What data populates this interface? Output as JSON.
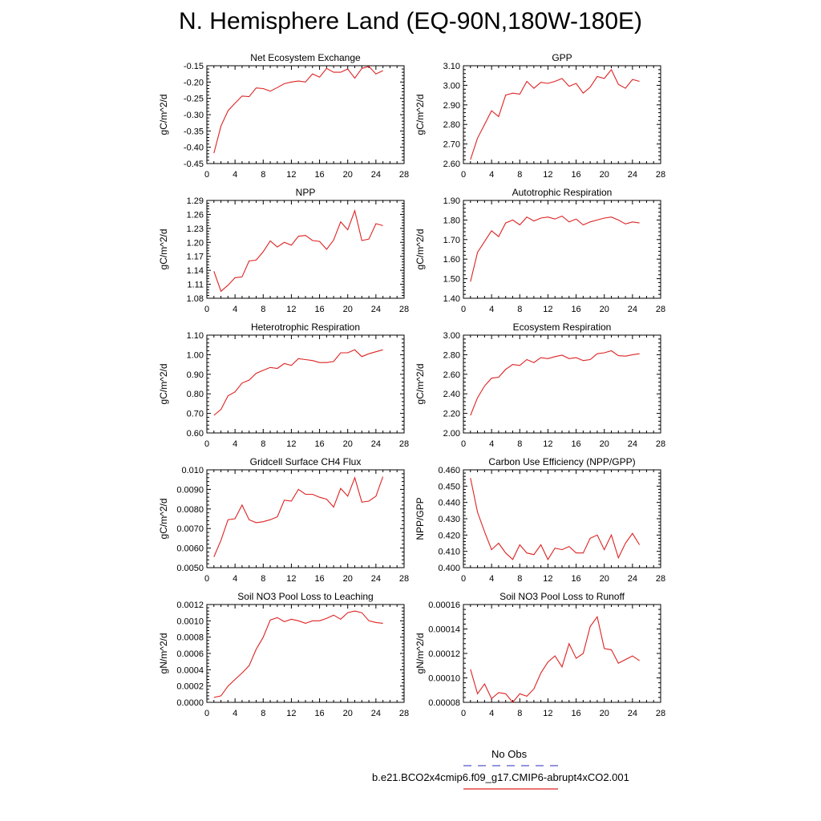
{
  "title": "N. Hemisphere Land (EQ-90N,180W-180E)",
  "legend": {
    "obs_label": "No Obs",
    "obs_color": "#5555cc",
    "case_label": "b.e21.BCO2x4cmip6.f09_g17.CMIP6-abrupt4xCO2.001",
    "case_color": "#dd2222"
  },
  "chart_data": [
    {
      "type": "line",
      "title": "Net Ecosystem Exchange",
      "ylabel": "gC/m^2/d",
      "xlim": [
        0,
        28
      ],
      "ylim": [
        -0.45,
        -0.15
      ],
      "yticks": [
        "-0.15",
        "-0.20",
        "-0.25",
        "-0.30",
        "-0.35",
        "-0.40",
        "-0.45"
      ],
      "ytick_values": [
        -0.15,
        -0.2,
        -0.25,
        -0.3,
        -0.35,
        -0.4,
        -0.45
      ],
      "xticks": [
        "0",
        "4",
        "8",
        "12",
        "16",
        "20",
        "24",
        "28"
      ],
      "x": [
        1,
        2,
        3,
        4,
        5,
        6,
        7,
        8,
        9,
        10,
        11,
        12,
        13,
        14,
        15,
        16,
        17,
        18,
        19,
        20,
        21,
        22,
        23,
        24,
        25
      ],
      "values": [
        -0.418,
        -0.335,
        -0.288,
        -0.265,
        -0.243,
        -0.245,
        -0.218,
        -0.22,
        -0.228,
        -0.217,
        -0.205,
        -0.2,
        -0.197,
        -0.2,
        -0.175,
        -0.185,
        -0.158,
        -0.17,
        -0.17,
        -0.16,
        -0.188,
        -0.158,
        -0.152,
        -0.175,
        -0.165
      ]
    },
    {
      "type": "line",
      "title": "GPP",
      "ylabel": "gC/m^2/d",
      "xlim": [
        0,
        28
      ],
      "ylim": [
        2.6,
        3.1
      ],
      "yticks": [
        "3.10",
        "3.00",
        "2.90",
        "2.80",
        "2.70",
        "2.60"
      ],
      "ytick_values": [
        3.1,
        3.0,
        2.9,
        2.8,
        2.7,
        2.6
      ],
      "xticks": [
        "0",
        "4",
        "8",
        "12",
        "16",
        "20",
        "24",
        "28"
      ],
      "x": [
        1,
        2,
        3,
        4,
        5,
        6,
        7,
        8,
        9,
        10,
        11,
        12,
        13,
        14,
        15,
        16,
        17,
        18,
        19,
        20,
        21,
        22,
        23,
        24,
        25
      ],
      "values": [
        2.62,
        2.73,
        2.8,
        2.87,
        2.84,
        2.95,
        2.96,
        2.955,
        3.02,
        2.985,
        3.015,
        3.01,
        3.02,
        3.035,
        2.995,
        3.01,
        2.96,
        2.99,
        3.045,
        3.035,
        3.08,
        3.005,
        2.985,
        3.03,
        3.02
      ]
    },
    {
      "type": "line",
      "title": "NPP",
      "ylabel": "gC/m^2/d",
      "xlim": [
        0,
        28
      ],
      "ylim": [
        1.08,
        1.29
      ],
      "yticks": [
        "1.29",
        "1.26",
        "1.23",
        "1.20",
        "1.17",
        "1.14",
        "1.11",
        "1.08"
      ],
      "ytick_values": [
        1.29,
        1.26,
        1.23,
        1.2,
        1.17,
        1.14,
        1.11,
        1.08
      ],
      "xticks": [
        "0",
        "4",
        "8",
        "12",
        "16",
        "20",
        "24",
        "28"
      ],
      "x": [
        1,
        2,
        3,
        4,
        5,
        6,
        7,
        8,
        9,
        10,
        11,
        12,
        13,
        14,
        15,
        16,
        17,
        18,
        19,
        20,
        21,
        22,
        23,
        24,
        25
      ],
      "values": [
        1.138,
        1.095,
        1.108,
        1.124,
        1.126,
        1.16,
        1.162,
        1.18,
        1.203,
        1.19,
        1.2,
        1.194,
        1.213,
        1.215,
        1.204,
        1.202,
        1.185,
        1.205,
        1.244,
        1.227,
        1.268,
        1.204,
        1.207,
        1.24,
        1.236
      ]
    },
    {
      "type": "line",
      "title": "Autotrophic Respiration",
      "ylabel": "gC/m^2/d",
      "xlim": [
        0,
        28
      ],
      "ylim": [
        1.4,
        1.9
      ],
      "yticks": [
        "1.90",
        "1.80",
        "1.70",
        "1.60",
        "1.50",
        "1.40"
      ],
      "ytick_values": [
        1.9,
        1.8,
        1.7,
        1.6,
        1.5,
        1.4
      ],
      "xticks": [
        "0",
        "4",
        "8",
        "12",
        "16",
        "20",
        "24",
        "28"
      ],
      "x": [
        1,
        2,
        3,
        4,
        5,
        6,
        7,
        8,
        9,
        10,
        11,
        12,
        13,
        14,
        15,
        16,
        17,
        18,
        19,
        20,
        21,
        22,
        23,
        24,
        25
      ],
      "values": [
        1.485,
        1.635,
        1.69,
        1.745,
        1.715,
        1.785,
        1.8,
        1.775,
        1.815,
        1.795,
        1.81,
        1.815,
        1.805,
        1.82,
        1.79,
        1.805,
        1.775,
        1.79,
        1.8,
        1.81,
        1.815,
        1.8,
        1.78,
        1.79,
        1.785
      ]
    },
    {
      "type": "line",
      "title": "Heterotrophic Respiration",
      "ylabel": "gC/m^2/d",
      "xlim": [
        0,
        28
      ],
      "ylim": [
        0.6,
        1.1
      ],
      "yticks": [
        "1.10",
        "1.00",
        "0.90",
        "0.80",
        "0.70",
        "0.60"
      ],
      "ytick_values": [
        1.1,
        1.0,
        0.9,
        0.8,
        0.7,
        0.6
      ],
      "xticks": [
        "0",
        "4",
        "8",
        "12",
        "16",
        "20",
        "24",
        "28"
      ],
      "x": [
        1,
        2,
        3,
        4,
        5,
        6,
        7,
        8,
        9,
        10,
        11,
        12,
        13,
        14,
        15,
        16,
        17,
        18,
        19,
        20,
        21,
        22,
        23,
        24,
        25
      ],
      "values": [
        0.69,
        0.72,
        0.79,
        0.81,
        0.855,
        0.87,
        0.905,
        0.92,
        0.935,
        0.93,
        0.955,
        0.945,
        0.98,
        0.975,
        0.97,
        0.96,
        0.96,
        0.965,
        1.01,
        1.01,
        1.025,
        0.99,
        1.005,
        1.015,
        1.025
      ]
    },
    {
      "type": "line",
      "title": "Ecosystem Respiration",
      "ylabel": "gC/m^2/d",
      "xlim": [
        0,
        28
      ],
      "ylim": [
        2.0,
        3.0
      ],
      "yticks": [
        "3.00",
        "2.80",
        "2.60",
        "2.40",
        "2.20",
        "2.00"
      ],
      "ytick_values": [
        3.0,
        2.8,
        2.6,
        2.4,
        2.2,
        2.0
      ],
      "xticks": [
        "0",
        "4",
        "8",
        "12",
        "16",
        "20",
        "24",
        "28"
      ],
      "x": [
        1,
        2,
        3,
        4,
        5,
        6,
        7,
        8,
        9,
        10,
        11,
        12,
        13,
        14,
        15,
        16,
        17,
        18,
        19,
        20,
        21,
        22,
        23,
        24,
        25
      ],
      "values": [
        2.18,
        2.36,
        2.48,
        2.56,
        2.57,
        2.65,
        2.7,
        2.69,
        2.75,
        2.72,
        2.77,
        2.76,
        2.78,
        2.795,
        2.76,
        2.77,
        2.74,
        2.75,
        2.81,
        2.82,
        2.84,
        2.79,
        2.785,
        2.8,
        2.81
      ]
    },
    {
      "type": "line",
      "title": "Gridcell Surface CH4 Flux",
      "ylabel": "gC/m^2/d",
      "xlim": [
        0,
        28
      ],
      "ylim": [
        0.005,
        0.01
      ],
      "yticks": [
        "0.010",
        "0.0090",
        "0.0080",
        "0.0070",
        "0.0060",
        "0.0050"
      ],
      "ytick_values": [
        0.01,
        0.009,
        0.008,
        0.007,
        0.006,
        0.005
      ],
      "xticks": [
        "0",
        "4",
        "8",
        "12",
        "16",
        "20",
        "24",
        "28"
      ],
      "x": [
        1,
        2,
        3,
        4,
        5,
        6,
        7,
        8,
        9,
        10,
        11,
        12,
        13,
        14,
        15,
        16,
        17,
        18,
        19,
        20,
        21,
        22,
        23,
        24,
        25
      ],
      "values": [
        0.00555,
        0.0064,
        0.00745,
        0.0075,
        0.0082,
        0.00745,
        0.0073,
        0.00735,
        0.00745,
        0.0076,
        0.00845,
        0.0084,
        0.009,
        0.00875,
        0.00875,
        0.0086,
        0.0085,
        0.0081,
        0.00905,
        0.00865,
        0.0096,
        0.00835,
        0.0084,
        0.00865,
        0.00965
      ]
    },
    {
      "type": "line",
      "title": "Carbon Use Efficiency (NPP/GPP)",
      "ylabel": "NPP/GPP",
      "xlim": [
        0,
        28
      ],
      "ylim": [
        0.4,
        0.46
      ],
      "yticks": [
        "0.460",
        "0.450",
        "0.440",
        "0.430",
        "0.420",
        "0.410",
        "0.400"
      ],
      "ytick_values": [
        0.46,
        0.45,
        0.44,
        0.43,
        0.42,
        0.41,
        0.4
      ],
      "xticks": [
        "0",
        "4",
        "8",
        "12",
        "16",
        "20",
        "24",
        "28"
      ],
      "x": [
        1,
        2,
        3,
        4,
        5,
        6,
        7,
        8,
        9,
        10,
        11,
        12,
        13,
        14,
        15,
        16,
        17,
        18,
        19,
        20,
        21,
        22,
        23,
        24,
        25
      ],
      "values": [
        0.455,
        0.434,
        0.422,
        0.411,
        0.415,
        0.409,
        0.405,
        0.414,
        0.409,
        0.408,
        0.414,
        0.405,
        0.412,
        0.411,
        0.413,
        0.409,
        0.409,
        0.418,
        0.42,
        0.411,
        0.42,
        0.406,
        0.415,
        0.421,
        0.414
      ]
    },
    {
      "type": "line",
      "title": "Soil NO3 Pool Loss to Leaching",
      "ylabel": "gN/m^2/d",
      "xlim": [
        0,
        28
      ],
      "ylim": [
        0.0,
        0.0012
      ],
      "yticks": [
        "0.0012",
        "0.0010",
        "0.0008",
        "0.0006",
        "0.0004",
        "0.0002",
        "0.0000"
      ],
      "ytick_values": [
        0.0012,
        0.001,
        0.0008,
        0.0006,
        0.0004,
        0.0002,
        0.0
      ],
      "xticks": [
        "0",
        "4",
        "8",
        "12",
        "16",
        "20",
        "24",
        "28"
      ],
      "x": [
        1,
        2,
        3,
        4,
        5,
        6,
        7,
        8,
        9,
        10,
        11,
        12,
        13,
        14,
        15,
        16,
        17,
        18,
        19,
        20,
        21,
        22,
        23,
        24,
        25
      ],
      "values": [
        6e-05,
        8e-05,
        0.0002,
        0.00028,
        0.00036,
        0.00045,
        0.00065,
        0.0008,
        0.00101,
        0.00104,
        0.00099,
        0.00102,
        0.001,
        0.00097,
        0.001,
        0.001,
        0.00103,
        0.00107,
        0.00102,
        0.0011,
        0.00112,
        0.0011,
        0.001,
        0.00098,
        0.00097
      ]
    },
    {
      "type": "line",
      "title": "Soil NO3 Pool Loss to Runoff",
      "ylabel": "gN/m^2/d",
      "xlim": [
        0,
        28
      ],
      "ylim": [
        8e-05,
        0.00016
      ],
      "yticks": [
        "0.00016",
        "0.00014",
        "0.00012",
        "0.00010",
        "0.00008"
      ],
      "ytick_values": [
        0.00016,
        0.00014,
        0.00012,
        0.0001,
        8e-05
      ],
      "xticks": [
        "0",
        "4",
        "8",
        "12",
        "16",
        "20",
        "24",
        "28"
      ],
      "x": [
        1,
        2,
        3,
        4,
        5,
        6,
        7,
        8,
        9,
        10,
        11,
        12,
        13,
        14,
        15,
        16,
        17,
        18,
        19,
        20,
        21,
        22,
        23,
        24,
        25
      ],
      "values": [
        0.000107,
        8.7e-05,
        9.5e-05,
        8.3e-05,
        8.8e-05,
        8.7e-05,
        8e-05,
        8.7e-05,
        8.5e-05,
        9.1e-05,
        0.000104,
        0.000113,
        0.000118,
        0.000109,
        0.000128,
        0.000116,
        0.00012,
        0.000142,
        0.00015,
        0.000124,
        0.000123,
        0.000112,
        0.000115,
        0.000118,
        0.000114
      ]
    }
  ]
}
